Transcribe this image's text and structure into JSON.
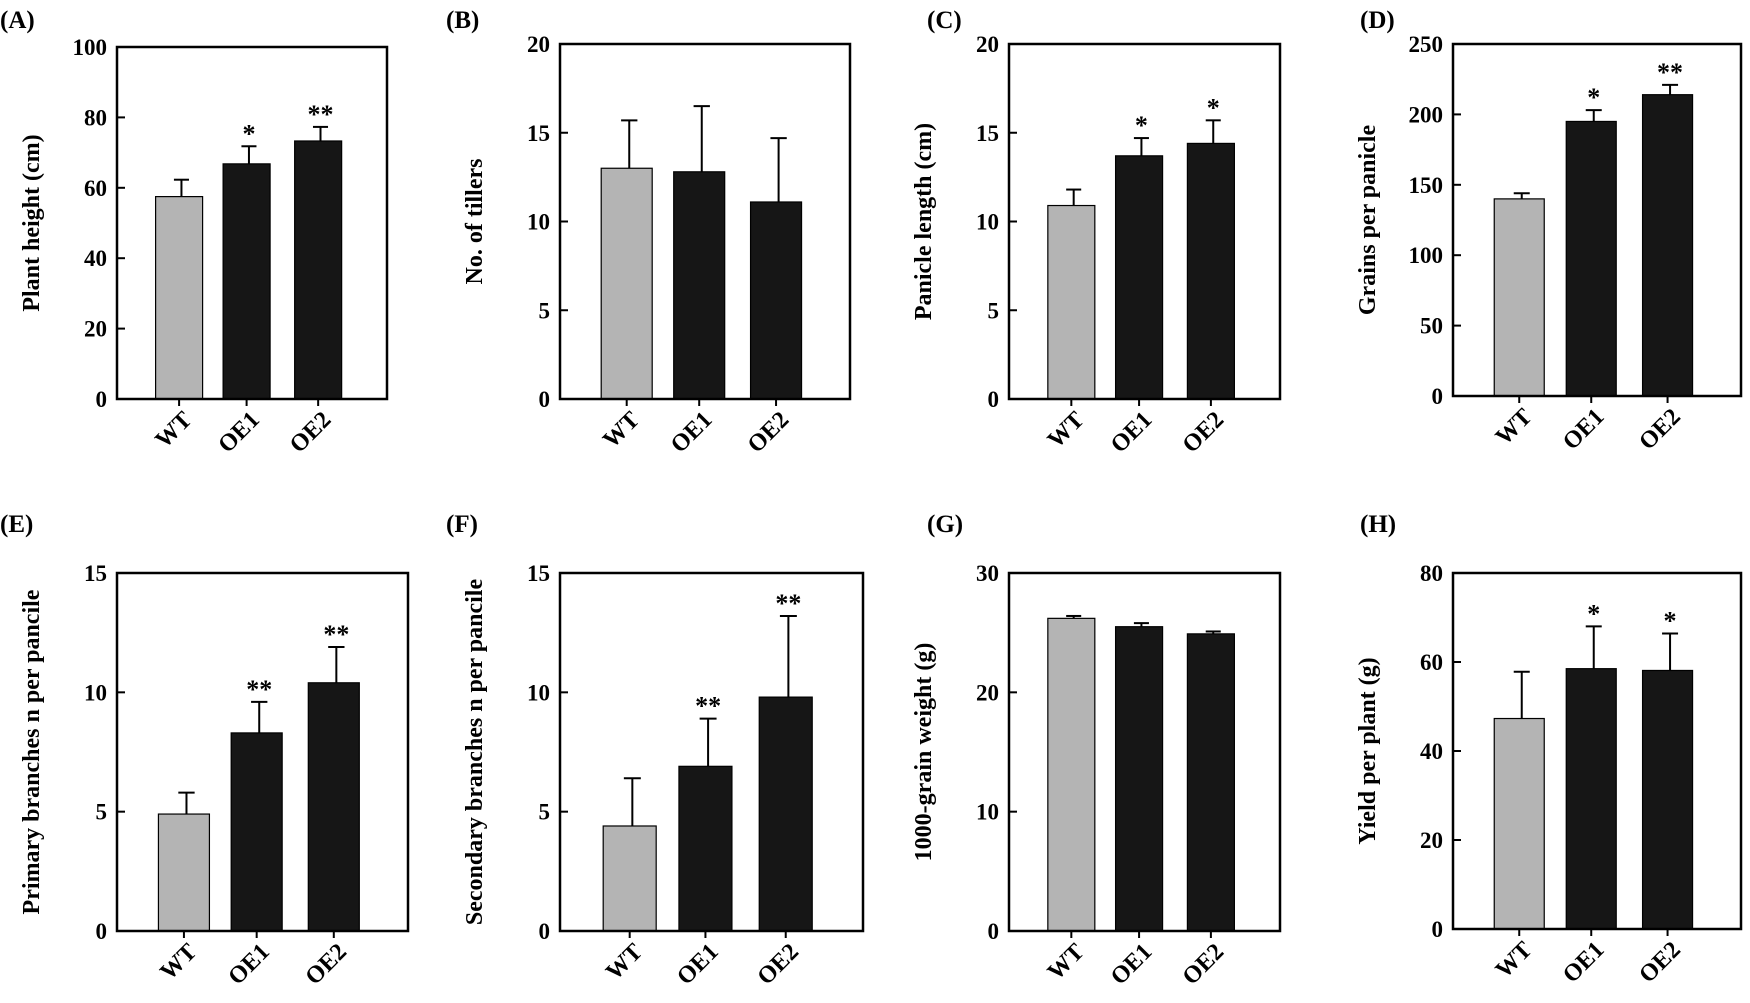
{
  "colors": {
    "wt_bar": "#b4b4b4",
    "oe_bar": "#161616",
    "axis": "#000000"
  },
  "chart_data": [
    {
      "panel_label": "(A)",
      "type": "bar",
      "categories": [
        "WT",
        "OE1",
        "OE2"
      ],
      "values": [
        57.5,
        66.8,
        73.3
      ],
      "errors": [
        4.8,
        5.0,
        4.0
      ],
      "significance": [
        "",
        "*",
        "**"
      ],
      "ylabel": "Plant height (cm)",
      "ylim": [
        0,
        100
      ],
      "yticks": [
        0,
        20,
        40,
        60,
        80,
        100
      ]
    },
    {
      "panel_label": "(B)",
      "type": "bar",
      "categories": [
        "WT",
        "OE1",
        "OE2"
      ],
      "values": [
        13.0,
        12.8,
        11.1
      ],
      "errors": [
        2.7,
        3.7,
        3.6
      ],
      "significance": [
        "",
        "",
        ""
      ],
      "ylabel": "No. of tillers",
      "ylim": [
        0,
        20
      ],
      "yticks": [
        0,
        5,
        10,
        15,
        20
      ]
    },
    {
      "panel_label": "(C)",
      "type": "bar",
      "categories": [
        "WT",
        "OE1",
        "OE2"
      ],
      "values": [
        10.9,
        13.7,
        14.4
      ],
      "errors": [
        0.9,
        1.0,
        1.3
      ],
      "significance": [
        "",
        "*",
        "*"
      ],
      "ylabel": "Panicle length (cm)",
      "ylim": [
        0,
        20
      ],
      "yticks": [
        0,
        5,
        10,
        15,
        20
      ]
    },
    {
      "panel_label": "(D)",
      "type": "bar",
      "categories": [
        "WT",
        "OE1",
        "OE2"
      ],
      "values": [
        140,
        195,
        214
      ],
      "errors": [
        4,
        8,
        7
      ],
      "significance": [
        "",
        "*",
        "**"
      ],
      "ylabel": "Grains per panicle",
      "ylim": [
        0,
        250
      ],
      "yticks": [
        0,
        50,
        100,
        150,
        200,
        250
      ]
    },
    {
      "panel_label": "(E)",
      "type": "bar",
      "categories": [
        "WT",
        "OE1",
        "OE2"
      ],
      "values": [
        4.9,
        8.3,
        10.4
      ],
      "errors": [
        0.9,
        1.3,
        1.5
      ],
      "significance": [
        "",
        "**",
        "**"
      ],
      "ylabel": "Primary branches n per pancile",
      "ylim": [
        0,
        15
      ],
      "yticks": [
        0,
        5,
        10,
        15
      ]
    },
    {
      "panel_label": "(F)",
      "type": "bar",
      "categories": [
        "WT",
        "OE1",
        "OE2"
      ],
      "values": [
        4.4,
        6.9,
        9.8
      ],
      "errors": [
        2.0,
        2.0,
        3.4
      ],
      "significance": [
        "",
        "**",
        "**"
      ],
      "ylabel": "Secondary branches n per pancile",
      "ylim": [
        0,
        15
      ],
      "yticks": [
        0,
        5,
        10,
        15
      ]
    },
    {
      "panel_label": "(G)",
      "type": "bar",
      "categories": [
        "WT",
        "OE1",
        "OE2"
      ],
      "values": [
        26.2,
        25.5,
        24.9
      ],
      "errors": [
        0.2,
        0.3,
        0.2
      ],
      "significance": [
        "",
        "",
        ""
      ],
      "ylabel": "1000-grain weight (g)",
      "ylim": [
        0,
        30
      ],
      "yticks": [
        0,
        10,
        20,
        30
      ]
    },
    {
      "panel_label": "(H)",
      "type": "bar",
      "categories": [
        "WT",
        "OE1",
        "OE2"
      ],
      "values": [
        47.3,
        58.5,
        58.1
      ],
      "errors": [
        10.5,
        9.5,
        8.3
      ],
      "significance": [
        "",
        "*",
        "*"
      ],
      "ylabel": "Yield per plant (g)",
      "ylim": [
        0,
        80
      ],
      "yticks": [
        0,
        20,
        40,
        60,
        80
      ]
    }
  ]
}
